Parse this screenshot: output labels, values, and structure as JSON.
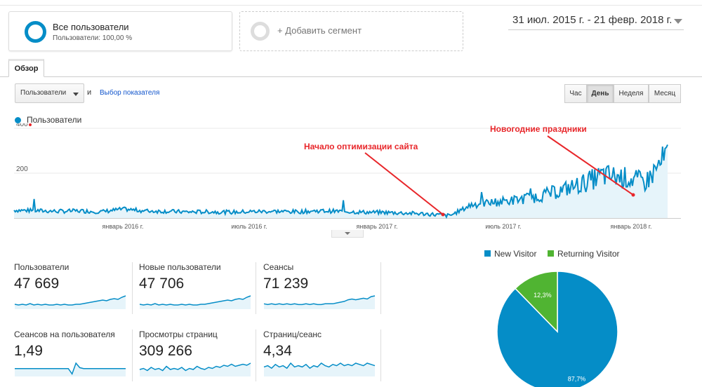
{
  "segments": {
    "primary": {
      "title": "Все пользователи",
      "subtitle": "Пользователи: 100,00 %"
    },
    "add_label": "+ Добавить сегмент"
  },
  "date_range": "31 июл. 2015 г. - 21 февр. 2018 г.",
  "tabs": {
    "overview": "Обзор"
  },
  "metric_selector": {
    "value": "Пользователи",
    "and": "и",
    "pick_link": "Выбор показателя"
  },
  "granularity": {
    "hour": "Час",
    "day": "День",
    "week": "Неделя",
    "month": "Месяц",
    "active": "День"
  },
  "annotations": {
    "optimization": "Начало оптимизации сайта",
    "holidays": "Новогодние праздники"
  },
  "colors": {
    "series": "#058dc7",
    "series_fill": "#e6f4fa",
    "annotation": "#e8262a",
    "returning": "#50b432"
  },
  "chart_data": [
    {
      "type": "area",
      "series": [
        {
          "name": "Пользователи",
          "x": [
            "2015-08",
            "2015-09",
            "2015-10",
            "2015-11",
            "2015-12",
            "2016-01",
            "2016-02",
            "2016-03",
            "2016-04",
            "2016-05",
            "2016-06",
            "2016-07",
            "2016-08",
            "2016-09",
            "2016-10",
            "2016-11",
            "2016-12",
            "2017-01",
            "2017-02",
            "2017-03",
            "2017-04",
            "2017-05",
            "2017-06",
            "2017-07",
            "2017-08",
            "2017-09",
            "2017-10",
            "2017-11",
            "2017-12",
            "2018-01",
            "2018-02"
          ],
          "values": [
            35,
            33,
            30,
            32,
            28,
            40,
            32,
            30,
            27,
            28,
            26,
            29,
            30,
            28,
            32,
            30,
            26,
            25,
            22,
            18,
            10,
            60,
            70,
            80,
            95,
            120,
            150,
            190,
            180,
            160,
            280
          ]
        }
      ],
      "x_tick_labels": [
        "январь 2016 г.",
        "июль 2016 г.",
        "январь 2017 г.",
        "июль 2017 г.",
        "январь 2018 г."
      ],
      "y_ticks": [
        200,
        400
      ],
      "ylim": [
        0,
        400
      ],
      "grid": true
    },
    {
      "type": "pie",
      "legend": [
        "New Visitor",
        "Returning Visitor"
      ],
      "values": [
        87.7,
        12.3
      ],
      "labels": [
        "87,7%",
        "12,3%"
      ],
      "colors": [
        "#058dc7",
        "#50b432"
      ],
      "legend_position": "top"
    }
  ],
  "metrics": [
    {
      "label": "Пользователи",
      "value": "47 669",
      "trend": [
        6,
        5,
        6,
        5,
        7,
        5,
        6,
        5,
        6,
        5,
        5,
        6,
        5,
        6,
        5,
        5,
        6,
        6,
        7,
        8,
        9,
        10,
        11,
        12,
        11,
        13,
        14,
        13,
        16,
        18
      ]
    },
    {
      "label": "Новые пользователи",
      "value": "47 706",
      "trend": [
        6,
        5,
        6,
        5,
        7,
        5,
        6,
        5,
        6,
        5,
        5,
        6,
        5,
        6,
        5,
        5,
        6,
        6,
        7,
        8,
        9,
        10,
        11,
        12,
        11,
        13,
        14,
        13,
        16,
        18
      ]
    },
    {
      "label": "Сеансы",
      "value": "71 239",
      "trend": [
        6,
        5,
        6,
        5,
        6,
        5,
        6,
        5,
        6,
        5,
        5,
        6,
        5,
        6,
        5,
        5,
        6,
        6,
        6,
        7,
        8,
        9,
        11,
        12,
        11,
        12,
        13,
        12,
        15,
        16
      ]
    },
    {
      "label": "Сеансов на пользователя",
      "value": "1,49",
      "trend": [
        8,
        8,
        8,
        8,
        8,
        8,
        8,
        8,
        8,
        8,
        8,
        8,
        8,
        8,
        8,
        2,
        14,
        9,
        8,
        8,
        8,
        8,
        8,
        8,
        8,
        8,
        8,
        8,
        8,
        8
      ]
    },
    {
      "label": "Просмотры страниц",
      "value": "309 266",
      "trend": [
        6,
        7,
        5,
        8,
        6,
        7,
        5,
        9,
        6,
        7,
        6,
        8,
        5,
        7,
        6,
        9,
        7,
        6,
        8,
        7,
        9,
        8,
        10,
        9,
        11,
        9,
        10,
        11,
        10,
        12
      ]
    },
    {
      "label": "Страниц/сеанс",
      "value": "4,34",
      "trend": [
        7,
        8,
        6,
        9,
        7,
        8,
        6,
        10,
        7,
        8,
        7,
        9,
        6,
        8,
        7,
        10,
        8,
        7,
        9,
        8,
        10,
        8,
        9,
        8,
        10,
        9,
        8,
        10,
        9,
        8
      ]
    }
  ]
}
